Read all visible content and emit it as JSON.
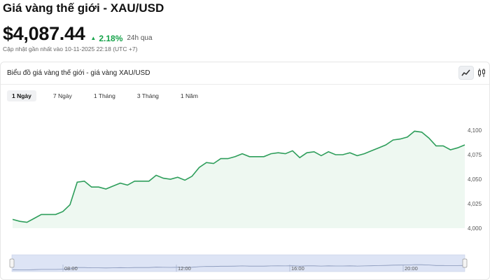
{
  "header": {
    "title": "Giá vàng thế giới - XAU/USD",
    "price": "$4,087.44",
    "change": "2.18%",
    "change_period": "24h qua",
    "updated": "Cập nhật gần nhất vào 10-11-2025 22:18 (UTC +7)"
  },
  "card": {
    "title": "Biểu đồ giá vàng thế giới - giá vàng XAU/USD",
    "chart_type_icons": [
      "line-chart-icon",
      "candlestick-icon"
    ]
  },
  "tabs": [
    {
      "label": "1 Ngày",
      "active": true
    },
    {
      "label": "7 Ngày",
      "active": false
    },
    {
      "label": "1 Tháng",
      "active": false
    },
    {
      "label": "3 Tháng",
      "active": false
    },
    {
      "label": "1 Năm",
      "active": false
    }
  ],
  "colors": {
    "line": "#2e9e5b",
    "area": "#eef8f1",
    "up": "#16a34a",
    "navigator": "#dde4f5"
  },
  "chart_data": {
    "type": "area",
    "ylim": [
      4000,
      4100
    ],
    "yticks": [
      "4,000",
      "4,025",
      "4,050",
      "4,075",
      "4,100"
    ],
    "y": [
      4009,
      4007,
      4006,
      4010,
      4014,
      4014,
      4014,
      4017,
      4024,
      4047,
      4048,
      4042,
      4042,
      4040,
      4043,
      4046,
      4044,
      4048,
      4048,
      4048,
      4054,
      4051,
      4050,
      4052,
      4049,
      4053,
      4062,
      4067,
      4066,
      4071,
      4071,
      4073,
      4076,
      4073,
      4073,
      4073,
      4076,
      4077,
      4076,
      4079,
      4072,
      4077,
      4078,
      4074,
      4078,
      4075,
      4075,
      4077,
      4074,
      4076,
      4079,
      4082,
      4085,
      4090,
      4091,
      4093,
      4099,
      4098,
      4092,
      4084,
      4084,
      4080,
      4082,
      4085
    ],
    "navigator_labels": [
      "08:00",
      "12:00",
      "16:00",
      "20:00"
    ]
  }
}
